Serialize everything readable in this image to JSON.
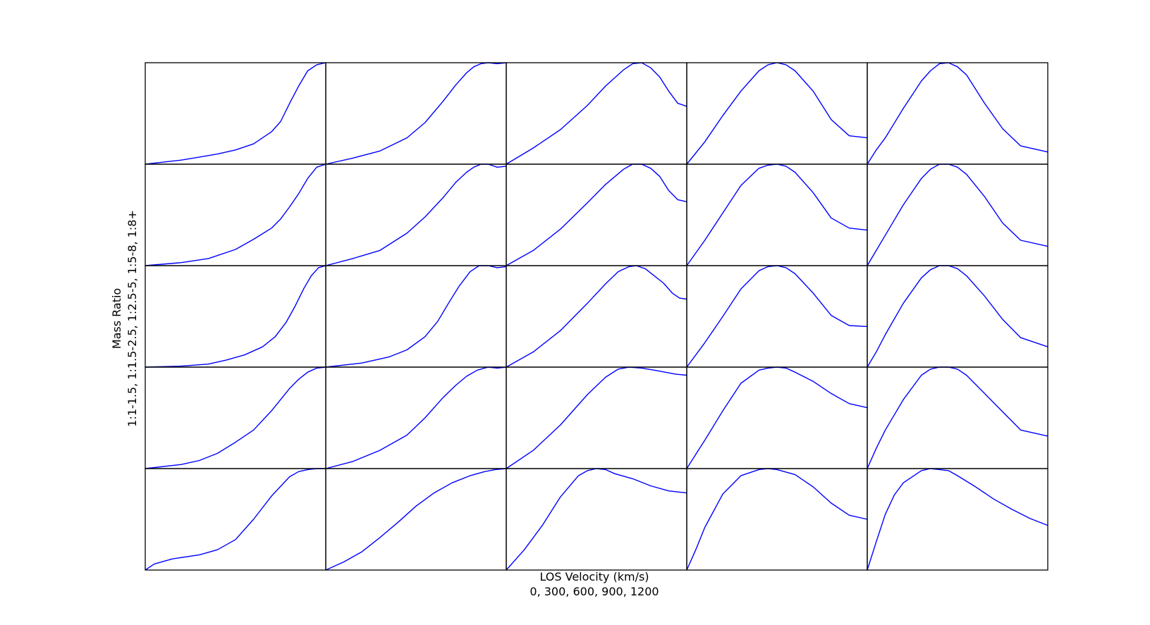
{
  "chart_data": {
    "type": "line",
    "layout": "5x5 grid of small multiples, shared axes, no ticks",
    "xlabel_line1": "LOS Velocity (km/s)",
    "xlabel_line2": "0, 300, 600, 900, 1200",
    "ylabel_line1": "Mass Ratio",
    "ylabel_line2": "1:1-1.5, 1:1.5-2.5, 1:2.5-5, 1:5-8, 1:8+",
    "x_fraction_range": [
      0,
      1
    ],
    "y_fraction_range": [
      0,
      1
    ],
    "grid": false,
    "series_color": "#0000ff",
    "frame_color": "#000000",
    "panels": [
      [
        {
          "x": [
            0,
            0.1,
            0.2,
            0.3,
            0.4,
            0.5,
            0.6,
            0.7,
            0.75,
            0.8,
            0.85,
            0.9,
            0.95,
            1.0
          ],
          "y": [
            0,
            0.02,
            0.04,
            0.07,
            0.1,
            0.14,
            0.2,
            0.32,
            0.42,
            0.6,
            0.77,
            0.92,
            0.98,
            1.0
          ]
        },
        {
          "x": [
            0,
            0.15,
            0.3,
            0.45,
            0.55,
            0.65,
            0.72,
            0.78,
            0.82,
            0.86,
            0.9,
            0.95,
            1.0
          ],
          "y": [
            0,
            0.06,
            0.13,
            0.26,
            0.41,
            0.62,
            0.78,
            0.9,
            0.96,
            0.99,
            1.0,
            0.99,
            1.0
          ]
        },
        {
          "x": [
            0,
            0.15,
            0.3,
            0.45,
            0.55,
            0.65,
            0.7,
            0.75,
            0.8,
            0.85,
            0.9,
            0.95,
            1.0
          ],
          "y": [
            0,
            0.16,
            0.34,
            0.58,
            0.77,
            0.93,
            0.99,
            1.0,
            0.95,
            0.86,
            0.72,
            0.6,
            0.57
          ]
        },
        {
          "x": [
            0,
            0.1,
            0.2,
            0.3,
            0.4,
            0.45,
            0.5,
            0.55,
            0.6,
            0.7,
            0.8,
            0.9,
            1.0
          ],
          "y": [
            0,
            0.22,
            0.48,
            0.72,
            0.92,
            0.98,
            1.0,
            0.98,
            0.92,
            0.72,
            0.44,
            0.28,
            0.26
          ]
        },
        {
          "x": [
            0,
            0.05,
            0.1,
            0.2,
            0.3,
            0.35,
            0.4,
            0.45,
            0.5,
            0.55,
            0.65,
            0.75,
            0.85,
            1.0
          ],
          "y": [
            0,
            0.14,
            0.26,
            0.55,
            0.82,
            0.92,
            0.99,
            1.0,
            0.96,
            0.88,
            0.6,
            0.35,
            0.18,
            0.12
          ]
        }
      ],
      [
        {
          "x": [
            0,
            0.2,
            0.35,
            0.5,
            0.6,
            0.7,
            0.75,
            0.8,
            0.85,
            0.9,
            0.95,
            1.0
          ],
          "y": [
            0,
            0.03,
            0.07,
            0.16,
            0.26,
            0.37,
            0.46,
            0.58,
            0.71,
            0.86,
            0.97,
            1.0
          ]
        },
        {
          "x": [
            0,
            0.15,
            0.3,
            0.45,
            0.55,
            0.65,
            0.72,
            0.78,
            0.82,
            0.86,
            0.9,
            0.95,
            1.0
          ],
          "y": [
            0,
            0.07,
            0.15,
            0.32,
            0.48,
            0.67,
            0.82,
            0.92,
            0.97,
            1.0,
            1.0,
            0.97,
            0.98
          ]
        },
        {
          "x": [
            0,
            0.15,
            0.3,
            0.45,
            0.55,
            0.65,
            0.7,
            0.75,
            0.8,
            0.85,
            0.9,
            0.95,
            1.0
          ],
          "y": [
            0,
            0.15,
            0.36,
            0.62,
            0.8,
            0.95,
            1.0,
            1.0,
            0.96,
            0.88,
            0.74,
            0.65,
            0.63
          ]
        },
        {
          "x": [
            0,
            0.1,
            0.2,
            0.3,
            0.4,
            0.45,
            0.5,
            0.55,
            0.6,
            0.7,
            0.8,
            0.9,
            1.0
          ],
          "y": [
            0,
            0.25,
            0.52,
            0.79,
            0.96,
            0.99,
            1.0,
            0.98,
            0.92,
            0.72,
            0.47,
            0.37,
            0.35
          ]
        },
        {
          "x": [
            0,
            0.05,
            0.1,
            0.2,
            0.3,
            0.35,
            0.4,
            0.45,
            0.5,
            0.55,
            0.65,
            0.75,
            0.85,
            1.0
          ],
          "y": [
            0,
            0.15,
            0.3,
            0.6,
            0.86,
            0.95,
            1.0,
            1.0,
            0.97,
            0.9,
            0.68,
            0.42,
            0.25,
            0.19
          ]
        }
      ],
      [
        {
          "x": [
            0,
            0.2,
            0.35,
            0.45,
            0.55,
            0.65,
            0.72,
            0.78,
            0.83,
            0.88,
            0.92,
            0.96,
            1.0
          ],
          "y": [
            0,
            0.01,
            0.03,
            0.07,
            0.12,
            0.2,
            0.3,
            0.44,
            0.6,
            0.78,
            0.9,
            0.98,
            1.0
          ]
        },
        {
          "x": [
            0,
            0.2,
            0.35,
            0.45,
            0.55,
            0.62,
            0.68,
            0.74,
            0.8,
            0.85,
            0.9,
            0.95,
            1.0
          ],
          "y": [
            0,
            0.04,
            0.1,
            0.17,
            0.3,
            0.45,
            0.63,
            0.8,
            0.94,
            1.0,
            1.0,
            0.98,
            0.99
          ]
        },
        {
          "x": [
            0,
            0.15,
            0.3,
            0.45,
            0.55,
            0.62,
            0.68,
            0.72,
            0.77,
            0.82,
            0.87,
            0.92,
            0.96,
            1.0
          ],
          "y": [
            0,
            0.15,
            0.36,
            0.63,
            0.82,
            0.94,
            0.99,
            1.0,
            0.97,
            0.9,
            0.83,
            0.73,
            0.68,
            0.67
          ]
        },
        {
          "x": [
            0,
            0.1,
            0.2,
            0.3,
            0.4,
            0.45,
            0.5,
            0.55,
            0.6,
            0.7,
            0.8,
            0.9,
            1.0
          ],
          "y": [
            0,
            0.24,
            0.5,
            0.77,
            0.95,
            0.99,
            1.0,
            0.98,
            0.92,
            0.73,
            0.51,
            0.41,
            0.4
          ]
        },
        {
          "x": [
            0,
            0.05,
            0.1,
            0.2,
            0.3,
            0.35,
            0.4,
            0.45,
            0.5,
            0.55,
            0.65,
            0.75,
            0.85,
            1.0
          ],
          "y": [
            0,
            0.15,
            0.32,
            0.63,
            0.88,
            0.96,
            1.0,
            1.0,
            0.97,
            0.9,
            0.7,
            0.47,
            0.29,
            0.2
          ]
        }
      ],
      [
        {
          "x": [
            0,
            0.2,
            0.3,
            0.4,
            0.5,
            0.6,
            0.7,
            0.75,
            0.8,
            0.85,
            0.9,
            0.95,
            1.0
          ],
          "y": [
            0,
            0.04,
            0.08,
            0.15,
            0.26,
            0.38,
            0.57,
            0.68,
            0.79,
            0.88,
            0.95,
            0.99,
            1.0
          ]
        },
        {
          "x": [
            0,
            0.15,
            0.3,
            0.45,
            0.55,
            0.65,
            0.72,
            0.78,
            0.84,
            0.9,
            0.95,
            1.0
          ],
          "y": [
            0,
            0.07,
            0.18,
            0.33,
            0.5,
            0.7,
            0.82,
            0.91,
            0.97,
            1.0,
            0.99,
            1.0
          ]
        },
        {
          "x": [
            0,
            0.15,
            0.3,
            0.45,
            0.55,
            0.62,
            0.68,
            0.75,
            0.82,
            0.88,
            0.94,
            1.0
          ],
          "y": [
            0,
            0.18,
            0.43,
            0.73,
            0.9,
            0.98,
            1.0,
            0.99,
            0.97,
            0.95,
            0.93,
            0.92
          ]
        },
        {
          "x": [
            0,
            0.1,
            0.2,
            0.3,
            0.4,
            0.45,
            0.5,
            0.55,
            0.6,
            0.7,
            0.8,
            0.9,
            1.0
          ],
          "y": [
            0,
            0.28,
            0.57,
            0.84,
            0.97,
            0.99,
            1.0,
            0.99,
            0.95,
            0.86,
            0.74,
            0.64,
            0.6
          ]
        },
        {
          "x": [
            0,
            0.05,
            0.1,
            0.2,
            0.3,
            0.35,
            0.4,
            0.45,
            0.5,
            0.55,
            0.65,
            0.75,
            0.85,
            1.0
          ],
          "y": [
            0,
            0.2,
            0.38,
            0.68,
            0.92,
            0.98,
            1.0,
            1.0,
            0.98,
            0.92,
            0.74,
            0.56,
            0.38,
            0.32
          ]
        }
      ],
      [
        {
          "x": [
            0,
            0.05,
            0.15,
            0.3,
            0.4,
            0.5,
            0.6,
            0.7,
            0.8,
            0.85,
            0.9,
            0.95,
            1.0
          ],
          "y": [
            0,
            0.06,
            0.11,
            0.15,
            0.2,
            0.3,
            0.5,
            0.73,
            0.92,
            0.97,
            0.99,
            1.0,
            1.0
          ]
        },
        {
          "x": [
            0,
            0.1,
            0.2,
            0.3,
            0.4,
            0.5,
            0.6,
            0.7,
            0.8,
            0.88,
            0.94,
            1.0
          ],
          "y": [
            0,
            0.08,
            0.18,
            0.32,
            0.47,
            0.63,
            0.76,
            0.86,
            0.93,
            0.97,
            0.99,
            1.0
          ]
        },
        {
          "x": [
            0,
            0.1,
            0.2,
            0.3,
            0.4,
            0.45,
            0.5,
            0.55,
            0.6,
            0.7,
            0.8,
            0.9,
            1.0
          ],
          "y": [
            0,
            0.2,
            0.44,
            0.72,
            0.93,
            0.98,
            1.0,
            0.99,
            0.95,
            0.9,
            0.83,
            0.78,
            0.76
          ]
        },
        {
          "x": [
            0,
            0.05,
            0.1,
            0.2,
            0.3,
            0.4,
            0.45,
            0.5,
            0.6,
            0.7,
            0.8,
            0.9,
            1.0
          ],
          "y": [
            0,
            0.2,
            0.42,
            0.75,
            0.93,
            0.99,
            1.0,
            0.99,
            0.94,
            0.82,
            0.66,
            0.54,
            0.5
          ]
        },
        {
          "x": [
            0,
            0.05,
            0.1,
            0.15,
            0.2,
            0.3,
            0.35,
            0.4,
            0.45,
            0.5,
            0.6,
            0.7,
            0.8,
            0.9,
            1.0
          ],
          "y": [
            0,
            0.28,
            0.55,
            0.74,
            0.86,
            0.98,
            1.0,
            0.99,
            0.98,
            0.93,
            0.82,
            0.7,
            0.6,
            0.51,
            0.44
          ]
        }
      ]
    ]
  }
}
